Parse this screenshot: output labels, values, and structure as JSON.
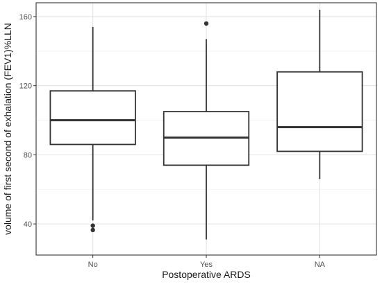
{
  "chart_data": {
    "type": "boxplot",
    "title": "",
    "xlabel": "Postoperative ARDS",
    "ylabel": "volume of first second of exhalation (FEV1)%LLN",
    "ylim": [
      22,
      168
    ],
    "y_ticks": [
      40,
      80,
      120,
      160
    ],
    "categories": [
      "No",
      "Yes",
      "NA"
    ],
    "boxes": [
      {
        "category": "No",
        "whisker_low": 42,
        "q1": 86,
        "median": 100,
        "q3": 117,
        "whisker_high": 154,
        "outliers": [
          39,
          36.5
        ]
      },
      {
        "category": "Yes",
        "whisker_low": 31,
        "q1": 74,
        "median": 90,
        "q3": 105,
        "whisker_high": 147,
        "outliers": [
          156
        ]
      },
      {
        "category": "NA",
        "whisker_low": 66,
        "q1": 82,
        "median": 96,
        "q3": 128,
        "whisker_high": 164,
        "outliers": []
      }
    ],
    "grid": true,
    "legend": "none",
    "colors": {
      "box_stroke": "#333333",
      "grid_major": "#e3e3e3",
      "grid_minor": "#f1f1f1",
      "panel_border": "#333333",
      "axis_text": "#4d4d4d",
      "title_text": "#1a1a1a"
    }
  }
}
